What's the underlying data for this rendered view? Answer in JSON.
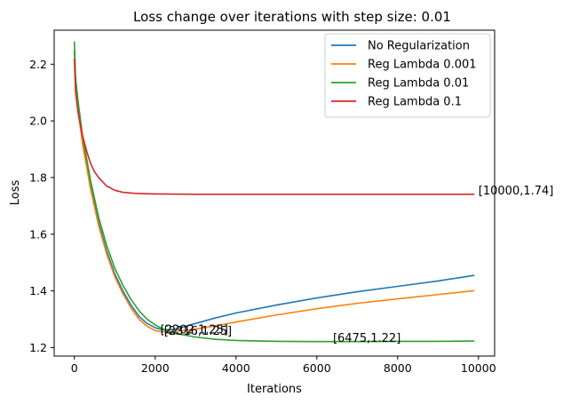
{
  "chart_data": {
    "type": "line",
    "title": "Loss change over iterations with step size: 0.01",
    "xlabel": "Iterations",
    "ylabel": "Loss",
    "xlim": [
      -500,
      10400
    ],
    "ylim": [
      1.17,
      2.32
    ],
    "xticks": [
      0,
      2000,
      4000,
      6000,
      8000,
      10000
    ],
    "yticks": [
      1.2,
      1.4,
      1.6,
      1.8,
      2.0,
      2.2
    ],
    "xtick_labels": [
      "0",
      "2000",
      "4000",
      "6000",
      "8000",
      "10000"
    ],
    "ytick_labels": [
      "1.2",
      "1.4",
      "1.6",
      "1.8",
      "2.0",
      "2.2"
    ],
    "grid": false,
    "legend": "top-right",
    "series": [
      {
        "name": "No Regularization",
        "color": "#1f77b4",
        "x": [
          0,
          30,
          100,
          200,
          400,
          600,
          800,
          1000,
          1200,
          1400,
          1600,
          1800,
          2000,
          2200,
          2500,
          3000,
          3500,
          4000,
          5000,
          6000,
          7000,
          8000,
          9000,
          9900
        ],
        "y": [
          2.25,
          2.13,
          2.04,
          1.93,
          1.77,
          1.64,
          1.54,
          1.46,
          1.4,
          1.35,
          1.31,
          1.285,
          1.27,
          1.262,
          1.265,
          1.285,
          1.305,
          1.322,
          1.35,
          1.375,
          1.397,
          1.416,
          1.435,
          1.455
        ]
      },
      {
        "name": "Reg Lambda 0.001",
        "color": "#ff7f0e",
        "x": [
          0,
          30,
          100,
          200,
          400,
          600,
          800,
          1000,
          1200,
          1400,
          1600,
          1800,
          2000,
          2200,
          2500,
          3000,
          3500,
          4000,
          5000,
          6000,
          7000,
          8000,
          9000,
          9900
        ],
        "y": [
          2.22,
          2.12,
          2.03,
          1.92,
          1.76,
          1.63,
          1.53,
          1.45,
          1.39,
          1.34,
          1.3,
          1.275,
          1.26,
          1.255,
          1.257,
          1.265,
          1.277,
          1.29,
          1.315,
          1.337,
          1.356,
          1.372,
          1.387,
          1.401
        ]
      },
      {
        "name": "Reg Lambda 0.01",
        "color": "#2ca02c",
        "x": [
          0,
          30,
          100,
          200,
          400,
          600,
          800,
          1000,
          1200,
          1400,
          1600,
          1800,
          2000,
          2200,
          2500,
          3000,
          3500,
          4000,
          5000,
          6000,
          6475,
          7000,
          8000,
          9000,
          9900
        ],
        "y": [
          2.28,
          2.15,
          2.06,
          1.95,
          1.79,
          1.66,
          1.56,
          1.48,
          1.42,
          1.37,
          1.33,
          1.3,
          1.28,
          1.265,
          1.25,
          1.237,
          1.229,
          1.225,
          1.222,
          1.221,
          1.221,
          1.221,
          1.222,
          1.222,
          1.223
        ]
      },
      {
        "name": "Reg Lambda 0.1",
        "color": "#d62728",
        "x": [
          0,
          30,
          100,
          200,
          300,
          400,
          500,
          600,
          800,
          1000,
          1200,
          1500,
          2000,
          3000,
          4000,
          5000,
          6000,
          7000,
          8000,
          9000,
          9900
        ],
        "y": [
          2.22,
          2.1,
          2.02,
          1.95,
          1.895,
          1.85,
          1.82,
          1.8,
          1.77,
          1.755,
          1.748,
          1.744,
          1.742,
          1.741,
          1.741,
          1.741,
          1.741,
          1.741,
          1.741,
          1.741,
          1.741
        ]
      }
    ],
    "annotations": [
      {
        "text": "[10000,1.74]",
        "x": 10000,
        "y": 1.74
      },
      {
        "text": "[6475,1.22]",
        "x": 6400,
        "y": 1.22
      },
      {
        "text": "[2202,1.25]",
        "x": 2130,
        "y": 1.25
      },
      {
        "text": "[2316,1.25]",
        "x": 2220,
        "y": 1.245
      }
    ]
  }
}
